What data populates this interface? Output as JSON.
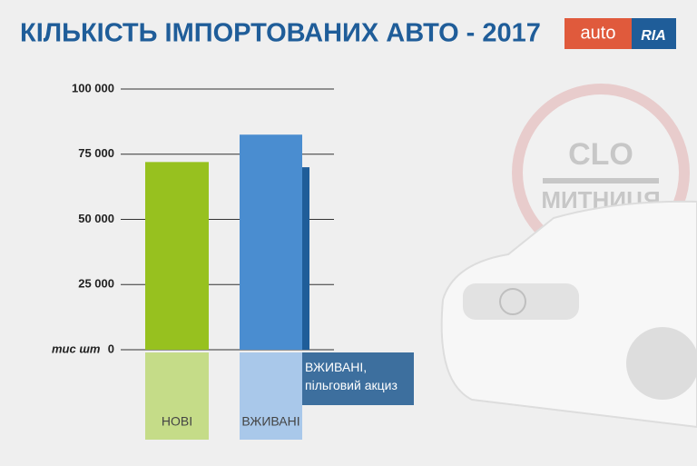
{
  "chart_data": {
    "type": "bar",
    "title": "КІЛЬКІСТЬ ІМПОРТОВАНИХ АВТО - 2017",
    "y_unit": "тис шт",
    "categories": [
      "НОВІ",
      "ВЖИВАНІ",
      "ВЖИВАНІ, пільговий акциз"
    ],
    "values": [
      72000,
      82500,
      70000
    ],
    "colors": [
      "#97c11f",
      "#4a8dd0",
      "#1f5d99"
    ],
    "ylim": [
      0,
      100000
    ],
    "yticks": [
      {
        "value": 0,
        "label": "0"
      },
      {
        "value": 25000,
        "label": "25 000"
      },
      {
        "value": 50000,
        "label": "50 000"
      },
      {
        "value": 75000,
        "label": "75 000"
      },
      {
        "value": 100000,
        "label": "100 000"
      }
    ],
    "grid": true
  },
  "logo": {
    "left": "auto",
    "right": "RIA"
  },
  "stamp": {
    "top": "CLO",
    "bottom": "МИТНИЦЯ"
  }
}
